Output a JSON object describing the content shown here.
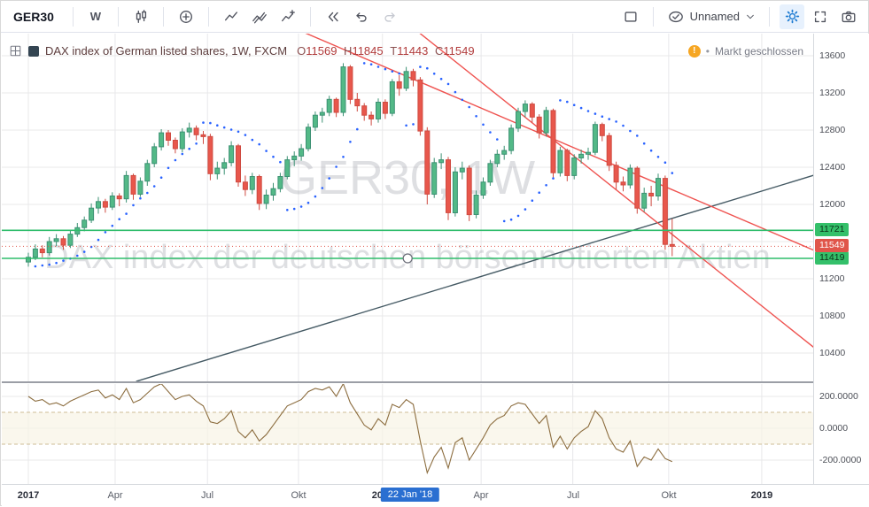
{
  "toolbar": {
    "symbol": "GER30",
    "interval_label": "W",
    "layout_name": "Unnamed"
  },
  "legend": {
    "title": "DAX index of German listed shares, 1W, FXCM",
    "ohlc": [
      {
        "k": "O",
        "v": "11569"
      },
      {
        "k": "H",
        "v": "11845"
      },
      {
        "k": "T",
        "v": "11443"
      },
      {
        "k": "C",
        "v": "11549"
      }
    ]
  },
  "status": {
    "bullet": "•",
    "text": "Markt geschlossen"
  },
  "watermark": {
    "line1": "GER30, 1W",
    "line2": "DAX index der deutschen börsennotierten Aktien",
    "color": "rgba(135,140,150,0.28)"
  },
  "time_axis": {
    "ticks": [
      {
        "text": "2017",
        "week": 0,
        "year": true
      },
      {
        "text": "Apr",
        "week": 12.4
      },
      {
        "text": "Jul",
        "week": 25.6
      },
      {
        "text": "Okt",
        "week": 38.6
      },
      {
        "text": "2018",
        "week": 50.6,
        "year": true
      },
      {
        "text": "Apr",
        "week": 64.7
      },
      {
        "text": "Jul",
        "week": 77.8
      },
      {
        "text": "Okt",
        "week": 91.5
      },
      {
        "text": "2019",
        "week": 104.8,
        "year": true
      }
    ],
    "marker": {
      "text": "22 Jan '18",
      "week": 54.5,
      "bg": "#2a6fd1"
    }
  },
  "price_axis": {
    "ticks": [
      13600,
      13200,
      12800,
      12400,
      12000,
      11200,
      10800,
      10400
    ]
  },
  "indicator_axis": {
    "ticks": [
      {
        "text": "200.0000",
        "value": 200
      },
      {
        "text": "0.0000",
        "value": 0
      },
      {
        "text": "-200.0000",
        "value": -200
      }
    ]
  },
  "chart_data": [
    {
      "type": "candlestick",
      "symbol": "GER30",
      "timeframe": "1W",
      "up_color": "#53b987",
      "up_border": "#3c9173",
      "down_color": "#e8574c",
      "down_border": "#cf4a40",
      "gridline_prices": [
        13600,
        13200,
        12800,
        12400,
        12000,
        11600,
        11200,
        10800,
        10400
      ],
      "ohlc": [
        [
          11380,
          11480,
          11330,
          11430
        ],
        [
          11430,
          11570,
          11400,
          11520
        ],
        [
          11520,
          11560,
          11430,
          11480
        ],
        [
          11480,
          11650,
          11450,
          11600
        ],
        [
          11600,
          11680,
          11550,
          11630
        ],
        [
          11630,
          11660,
          11510,
          11560
        ],
        [
          11560,
          11720,
          11530,
          11680
        ],
        [
          11680,
          11800,
          11650,
          11750
        ],
        [
          11750,
          11870,
          11710,
          11830
        ],
        [
          11830,
          12010,
          11800,
          11960
        ],
        [
          11960,
          12080,
          11900,
          12030
        ],
        [
          12030,
          12060,
          11910,
          11970
        ],
        [
          11970,
          12130,
          11940,
          12090
        ],
        [
          12090,
          12120,
          11980,
          12060
        ],
        [
          12060,
          12360,
          12020,
          12310
        ],
        [
          12310,
          12330,
          12050,
          12110
        ],
        [
          12110,
          12290,
          12080,
          12250
        ],
        [
          12250,
          12480,
          12200,
          12440
        ],
        [
          12440,
          12660,
          12400,
          12620
        ],
        [
          12620,
          12810,
          12580,
          12770
        ],
        [
          12770,
          12800,
          12630,
          12690
        ],
        [
          12690,
          12720,
          12550,
          12600
        ],
        [
          12600,
          12820,
          12560,
          12780
        ],
        [
          12780,
          12880,
          12720,
          12820
        ],
        [
          12820,
          12850,
          12690,
          12750
        ],
        [
          12750,
          12790,
          12650,
          12730
        ],
        [
          12730,
          12760,
          12260,
          12330
        ],
        [
          12330,
          12460,
          12270,
          12390
        ],
        [
          12390,
          12500,
          12320,
          12450
        ],
        [
          12450,
          12680,
          12410,
          12630
        ],
        [
          12630,
          12650,
          12190,
          12240
        ],
        [
          12240,
          12310,
          12090,
          12160
        ],
        [
          12160,
          12340,
          12110,
          12300
        ],
        [
          12300,
          12320,
          11940,
          12010
        ],
        [
          12010,
          12160,
          11950,
          12100
        ],
        [
          12100,
          12230,
          12040,
          12170
        ],
        [
          12170,
          12340,
          12130,
          12300
        ],
        [
          12300,
          12520,
          12270,
          12480
        ],
        [
          12480,
          12570,
          12410,
          12520
        ],
        [
          12520,
          12650,
          12470,
          12600
        ],
        [
          12600,
          12870,
          12570,
          12830
        ],
        [
          12830,
          13000,
          12790,
          12960
        ],
        [
          12960,
          13040,
          12880,
          12990
        ],
        [
          12990,
          13170,
          12950,
          13130
        ],
        [
          13130,
          13150,
          12940,
          12990
        ],
        [
          12990,
          13520,
          12950,
          13480
        ],
        [
          13480,
          13500,
          13080,
          13130
        ],
        [
          13130,
          13200,
          13000,
          13060
        ],
        [
          13060,
          13090,
          12900,
          12960
        ],
        [
          12960,
          13000,
          12850,
          12920
        ],
        [
          12920,
          13140,
          12880,
          13100
        ],
        [
          13100,
          13130,
          12920,
          12980
        ],
        [
          12980,
          13350,
          12950,
          13320
        ],
        [
          13320,
          13390,
          13170,
          13250
        ],
        [
          13250,
          13480,
          13220,
          13430
        ],
        [
          13430,
          13460,
          13270,
          13340
        ],
        [
          13340,
          13370,
          12740,
          12790
        ],
        [
          12790,
          12830,
          12000,
          12110
        ],
        [
          12110,
          12500,
          12070,
          12450
        ],
        [
          12450,
          12550,
          12380,
          12480
        ],
        [
          12480,
          12510,
          11830,
          11910
        ],
        [
          11910,
          12400,
          11870,
          12350
        ],
        [
          12350,
          12460,
          12270,
          12390
        ],
        [
          12390,
          12420,
          11820,
          11890
        ],
        [
          11890,
          12150,
          11850,
          12100
        ],
        [
          12100,
          12290,
          12060,
          12240
        ],
        [
          12240,
          12480,
          12200,
          12440
        ],
        [
          12440,
          12590,
          12400,
          12540
        ],
        [
          12540,
          12630,
          12480,
          12580
        ],
        [
          12580,
          12860,
          12540,
          12820
        ],
        [
          12820,
          13040,
          12780,
          13000
        ],
        [
          13000,
          13120,
          12940,
          13080
        ],
        [
          13080,
          13100,
          12880,
          12940
        ],
        [
          12940,
          12970,
          12710,
          12770
        ],
        [
          12770,
          13050,
          12730,
          13010
        ],
        [
          13010,
          13030,
          12280,
          12340
        ],
        [
          12340,
          12620,
          12300,
          12580
        ],
        [
          12580,
          12600,
          12250,
          12310
        ],
        [
          12310,
          12540,
          12270,
          12500
        ],
        [
          12500,
          12590,
          12440,
          12540
        ],
        [
          12540,
          12610,
          12480,
          12560
        ],
        [
          12560,
          12890,
          12530,
          12860
        ],
        [
          12860,
          12880,
          12680,
          12740
        ],
        [
          12740,
          12770,
          12360,
          12420
        ],
        [
          12420,
          12460,
          12160,
          12240
        ],
        [
          12240,
          12300,
          12140,
          12210
        ],
        [
          12210,
          12430,
          12170,
          12390
        ],
        [
          12390,
          12410,
          11900,
          11960
        ],
        [
          11960,
          12180,
          11920,
          12120
        ],
        [
          12120,
          12200,
          11980,
          12090
        ],
        [
          12090,
          12330,
          12040,
          12280
        ],
        [
          12280,
          12310,
          11510,
          11570
        ],
        [
          11569,
          11845,
          11443,
          11549
        ]
      ],
      "overlays": {
        "psar": {
          "name": "Parabolic SAR",
          "start": 0.02,
          "increment": 0.02,
          "max": 0.2,
          "color": "#2962ff"
        },
        "horizontal_lines": [
          {
            "price": 11721,
            "color": "#2fbd6b",
            "label_bg": "#34c06a",
            "label_fg": "#0b3018"
          },
          {
            "price": 11419,
            "color": "#2fbd6b",
            "label_bg": "#34c06a",
            "label_fg": "#0b3018",
            "selected": true,
            "handle_week": 54.2
          }
        ],
        "price_line": {
          "price": 11549,
          "color": "#e0564a",
          "label_bg": "#e0564a",
          "label_fg": "#ffffff"
        },
        "trend_lines": [
          {
            "x1_week": 15.4,
            "y1_price": 10095,
            "x2_week": 112.3,
            "y2_price": 12315,
            "color": "#455a64"
          },
          {
            "x1_week": 39.2,
            "y1_price": 13857,
            "x2_week": 112.3,
            "y2_price": 11505,
            "color": "#ef5350"
          },
          {
            "x1_week": 55.7,
            "y1_price": 13857,
            "x2_week": 112.3,
            "y2_price": 10457,
            "color": "#ef5350"
          }
        ]
      }
    },
    {
      "type": "line",
      "name": "Momentum",
      "color": "#8c6d3f",
      "levels": [
        100,
        -100
      ],
      "level_color": "#cdbd96",
      "band_fill": "#f8f3e6",
      "values": [
        200,
        170,
        180,
        150,
        160,
        140,
        170,
        190,
        210,
        230,
        240,
        190,
        210,
        180,
        250,
        160,
        180,
        220,
        260,
        280,
        230,
        180,
        200,
        210,
        170,
        140,
        40,
        30,
        60,
        110,
        -20,
        -60,
        -10,
        -80,
        -40,
        20,
        80,
        140,
        160,
        180,
        230,
        250,
        240,
        260,
        200,
        280,
        160,
        90,
        20,
        -10,
        60,
        20,
        150,
        130,
        180,
        150,
        -80,
        -280,
        -180,
        -120,
        -250,
        -90,
        -60,
        -200,
        -130,
        -60,
        20,
        60,
        80,
        140,
        160,
        150,
        90,
        30,
        80,
        -120,
        -50,
        -130,
        -60,
        -20,
        10,
        110,
        60,
        -60,
        -130,
        -150,
        -80,
        -240,
        -180,
        -200,
        -130,
        -190,
        -210
      ]
    }
  ]
}
